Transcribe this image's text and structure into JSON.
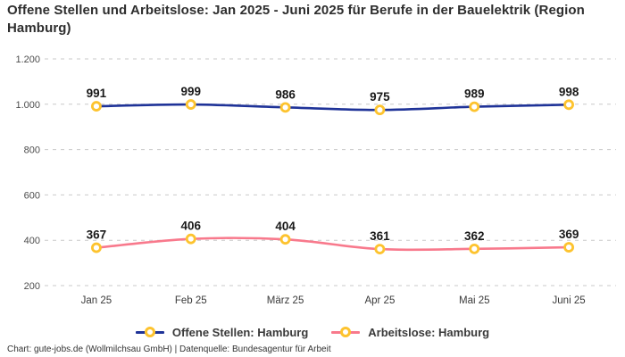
{
  "title": "Offene Stellen und Arbeitslose: Jan 2025 - Juni 2025 für Berufe in der Bauelektrik (Region Hamburg)",
  "footer": "Chart: gute-jobs.de (Wollmilchsau GmbH) | Datenquelle: Bundesagentur für Arbeit",
  "colors": {
    "offene_stellen_line": "#1f3398",
    "arbeitslose_line": "#f8798c",
    "marker_ring": "#fdc32e",
    "gridline": "#c9c9c9",
    "value_label": "#191919",
    "tick_label": "#4d4d4d",
    "title_text": "#2e2e2e"
  },
  "chart_data": {
    "type": "line",
    "categories": [
      "Jan 25",
      "Feb 25",
      "März 25",
      "Apr 25",
      "Mai 25",
      "Juni 25"
    ],
    "series": [
      {
        "name": "Offene Stellen: Hamburg",
        "values": [
          991,
          999,
          986,
          975,
          989,
          998
        ],
        "color": "#1f3398"
      },
      {
        "name": "Arbeitslose: Hamburg",
        "values": [
          367,
          406,
          404,
          361,
          362,
          369
        ],
        "color": "#f8798c"
      }
    ],
    "marker_color": "#fdc32e",
    "y_ticks": [
      200,
      400,
      600,
      800,
      1000,
      1200
    ],
    "y_tick_labels": [
      "200",
      "400",
      "600",
      "800",
      "1.000",
      "1.200"
    ],
    "ylim": [
      200,
      1200
    ],
    "grid": "dashed-horizontal",
    "legend_position": "bottom",
    "value_labels": true,
    "title": "Offene Stellen und Arbeitslose: Jan 2025 - Juni 2025 für Berufe in der Bauelektrik (Region Hamburg)",
    "xlabel": "",
    "ylabel": ""
  }
}
